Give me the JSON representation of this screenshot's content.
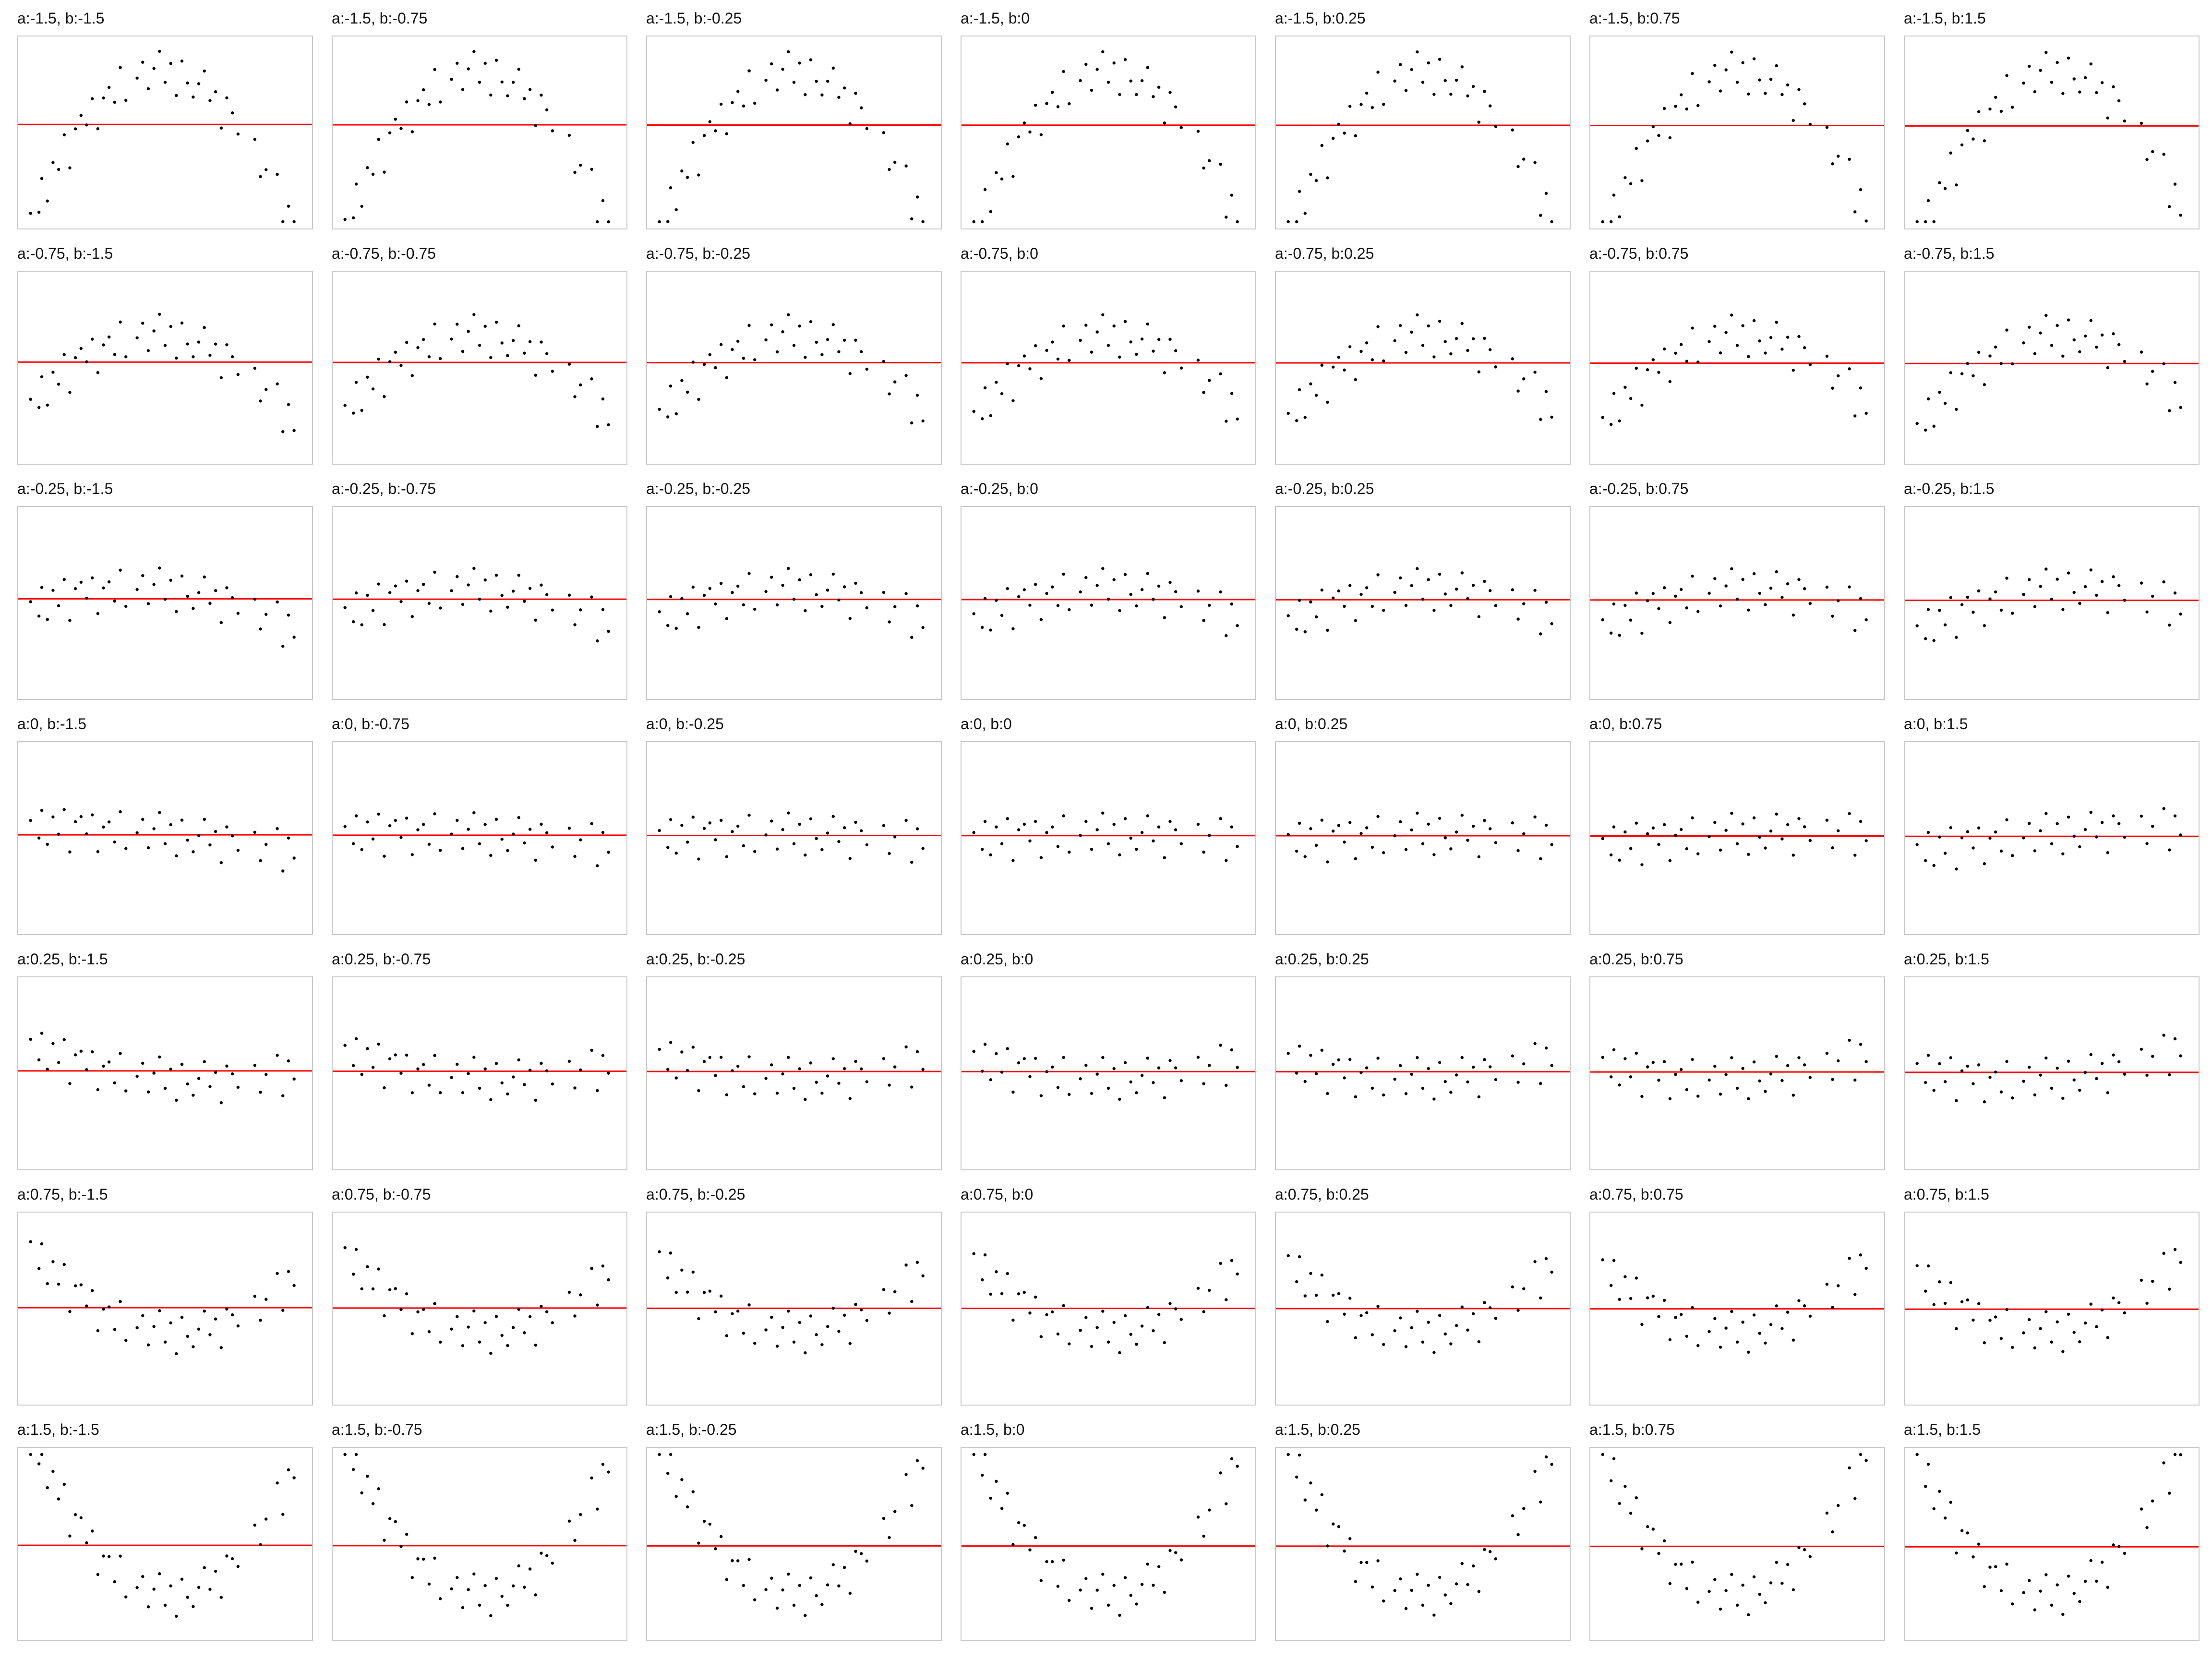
{
  "chart_data": {
    "type": "scatter",
    "layout": "7x7 small multiples",
    "a_values": [
      -1.5,
      -0.75,
      -0.25,
      0,
      0.25,
      0.75,
      1.5
    ],
    "b_values": [
      -1.5,
      -0.75,
      -0.25,
      0,
      0.25,
      0.75,
      1.5
    ],
    "panel_titles": [
      [
        "a:-1.5, b:-1.5",
        "a:-1.5, b:-0.75",
        "a:-1.5, b:-0.25",
        "a:-1.5, b:0",
        "a:-1.5, b:0.25",
        "a:-1.5, b:0.75",
        "a:-1.5, b:1.5"
      ],
      [
        "a:-0.75, b:-1.5",
        "a:-0.75, b:-0.75",
        "a:-0.75, b:-0.25",
        "a:-0.75, b:0",
        "a:-0.75, b:0.25",
        "a:-0.75, b:0.75",
        "a:-0.75, b:1.5"
      ],
      [
        "a:-0.25, b:-1.5",
        "a:-0.25, b:-0.75",
        "a:-0.25, b:-0.25",
        "a:-0.25, b:0",
        "a:-0.25, b:0.25",
        "a:-0.25, b:0.75",
        "a:-0.25, b:1.5"
      ],
      [
        "a:0, b:-1.5",
        "a:0, b:-0.75",
        "a:0, b:-0.25",
        "a:0, b:0",
        "a:0, b:0.25",
        "a:0, b:0.75",
        "a:0, b:1.5"
      ],
      [
        "a:0.25, b:-1.5",
        "a:0.25, b:-0.75",
        "a:0.25, b:-0.25",
        "a:0.25, b:0",
        "a:0.25, b:0.25",
        "a:0.25, b:0.75",
        "a:0.25, b:1.5"
      ],
      [
        "a:0.75, b:-1.5",
        "a:0.75, b:-0.75",
        "a:0.75, b:-0.25",
        "a:0.75, b:0",
        "a:0.75, b:0.25",
        "a:0.75, b:0.75",
        "a:0.75, b:1.5"
      ],
      [
        "a:1.5, b:-1.5",
        "a:1.5, b:-0.75",
        "a:1.5, b:-0.25",
        "a:1.5, b:0",
        "a:1.5, b:0.25",
        "a:1.5, b:0.75",
        "a:1.5, b:1.5"
      ]
    ],
    "x": [
      0.02,
      0.05,
      0.06,
      0.08,
      0.1,
      0.12,
      0.14,
      0.16,
      0.18,
      0.2,
      0.22,
      0.24,
      0.26,
      0.28,
      0.3,
      0.32,
      0.34,
      0.36,
      0.4,
      0.42,
      0.44,
      0.46,
      0.48,
      0.5,
      0.52,
      0.54,
      0.56,
      0.58,
      0.6,
      0.62,
      0.64,
      0.66,
      0.68,
      0.7,
      0.72,
      0.74,
      0.76,
      0.82,
      0.84,
      0.86,
      0.9,
      0.92,
      0.94,
      0.96
    ],
    "noise": [
      0.1,
      -0.2,
      0.3,
      -0.3,
      0.2,
      -0.1,
      0.35,
      -0.4,
      0.15,
      0.25,
      -0.05,
      0.3,
      -0.35,
      0.1,
      0.2,
      -0.15,
      0.4,
      -0.25,
      0.05,
      0.3,
      -0.2,
      0.15,
      0.45,
      -0.1,
      0.25,
      -0.3,
      0.35,
      0.0,
      -0.2,
      0.1,
      0.4,
      -0.05,
      0.2,
      -0.35,
      0.3,
      0.15,
      -0.1,
      0.25,
      -0.25,
      0.05,
      0.35,
      -0.4,
      0.2,
      -0.15
    ],
    "ylim": [
      -1.6,
      1.6
    ],
    "marker_color": "#000000",
    "fit_line_color": "#ff0000",
    "panel_border_color": "#c8c8c8",
    "grid": false,
    "legend": "none"
  }
}
